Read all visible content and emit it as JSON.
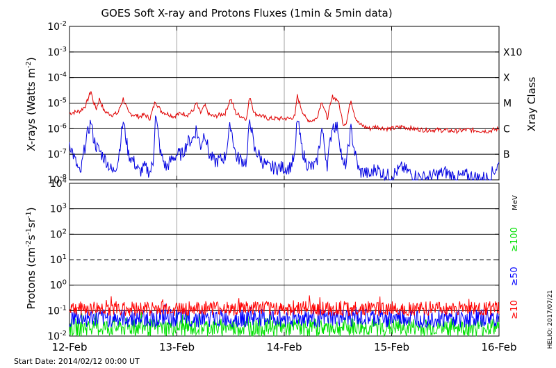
{
  "title": "GOES Soft X-ray and Protons Fluxes   (1min & 5min data)",
  "start_date": "Start Date: 2014/02/12 00:00 UT",
  "credit": "HELIO: 2017/07/21",
  "colors": {
    "xray_long": "#e00000",
    "xray_short": "#0000e0",
    "proton_10": "#ff0000",
    "proton_50": "#0000ff",
    "proton_100": "#00e000",
    "grid": "#000000",
    "day_line": "#a0a0a0"
  },
  "chart_data": [
    {
      "type": "line",
      "panel": "xray",
      "ylabel_parts": [
        "X-rays (Watts m",
        "-2",
        ")"
      ],
      "y_scale": "log",
      "ylim": [
        1e-08,
        0.01
      ],
      "yticks": [
        {
          "exp": "-2",
          "value": 0.01
        },
        {
          "exp": "-3",
          "value": 0.001
        },
        {
          "exp": "-4",
          "value": 0.0001
        },
        {
          "exp": "-5",
          "value": 1e-05
        },
        {
          "exp": "-6",
          "value": 1e-06
        },
        {
          "exp": "-7",
          "value": 1e-07
        },
        {
          "exp": "-8",
          "value": 1e-08
        }
      ],
      "xray_classes": [
        {
          "label": "X10",
          "value": 0.001
        },
        {
          "label": "X",
          "value": 0.0001
        },
        {
          "label": "M",
          "value": 1e-05
        },
        {
          "label": "C",
          "value": 1e-06
        },
        {
          "label": "B",
          "value": 1e-07
        }
      ],
      "right_label": "Xray Class",
      "series": [
        {
          "color": "#e00000",
          "x_days": [
            0.0,
            0.1,
            0.15,
            0.2,
            0.22,
            0.25,
            0.28,
            0.32,
            0.36,
            0.4,
            0.45,
            0.5,
            0.55,
            0.6,
            0.65,
            0.7,
            0.75,
            0.8,
            0.85,
            0.9,
            0.94,
            0.97,
            1.0,
            1.05,
            1.1,
            1.15,
            1.18,
            1.22,
            1.26,
            1.3,
            1.35,
            1.4,
            1.45,
            1.5,
            1.55,
            1.6,
            1.65,
            1.68,
            1.72,
            1.76,
            1.8,
            1.85,
            1.9,
            1.95,
            2.0,
            2.05,
            2.1,
            2.12,
            2.16,
            2.2,
            2.25,
            2.3,
            2.35,
            2.4,
            2.45,
            2.5,
            2.55,
            2.58,
            2.62,
            2.66,
            2.7,
            2.75,
            2.8,
            2.85,
            2.9,
            2.95,
            3.0,
            3.1,
            3.2,
            3.3,
            3.4,
            3.5,
            3.6,
            3.7,
            3.8,
            3.9,
            4.0
          ],
          "values": [
            4e-06,
            5e-06,
            8e-06,
            3e-05,
            1.2e-05,
            6e-06,
            1.5e-05,
            5e-06,
            4e-06,
            3.5e-06,
            4e-06,
            1.5e-05,
            4e-06,
            3.5e-06,
            3e-06,
            3.5e-06,
            2.5e-06,
            1.2e-05,
            5e-06,
            4e-06,
            3.5e-06,
            3e-06,
            3.5e-06,
            4e-06,
            3.5e-06,
            5e-06,
            1e-05,
            4e-06,
            8e-06,
            3.5e-06,
            3e-06,
            3.5e-06,
            4e-06,
            1.5e-05,
            4e-06,
            3e-06,
            2.5e-06,
            2e-05,
            4e-06,
            3.5e-06,
            3e-06,
            2.5e-06,
            2.5e-06,
            2.5e-06,
            2.5e-06,
            2.5e-06,
            3e-06,
            2e-05,
            6e-06,
            2.5e-06,
            2e-06,
            2.5e-06,
            1.2e-05,
            2.5e-06,
            1.8e-05,
            1.3e-05,
            1.5e-06,
            1.8e-06,
            1.4e-05,
            3e-06,
            1.5e-06,
            1.2e-06,
            1e-06,
            1.2e-06,
            1.1e-06,
            1e-06,
            1e-06,
            1.2e-06,
            1e-06,
            9e-07,
            9e-07,
            8.5e-07,
            8e-07,
            9e-07,
            8.5e-07,
            8e-07,
            1e-06
          ]
        },
        {
          "color": "#0000e0",
          "x_days": [
            0.0,
            0.05,
            0.1,
            0.15,
            0.2,
            0.22,
            0.25,
            0.3,
            0.35,
            0.4,
            0.45,
            0.5,
            0.55,
            0.6,
            0.65,
            0.7,
            0.75,
            0.78,
            0.8,
            0.85,
            0.9,
            0.95,
            1.0,
            1.05,
            1.1,
            1.15,
            1.18,
            1.22,
            1.26,
            1.3,
            1.35,
            1.4,
            1.45,
            1.5,
            1.55,
            1.6,
            1.65,
            1.68,
            1.72,
            1.76,
            1.8,
            1.85,
            1.9,
            1.95,
            2.0,
            2.05,
            2.1,
            2.12,
            2.16,
            2.2,
            2.25,
            2.3,
            2.35,
            2.4,
            2.45,
            2.5,
            2.55,
            2.58,
            2.62,
            2.66,
            2.7,
            2.75,
            2.8,
            2.85,
            2.9,
            2.95,
            3.0,
            3.1,
            3.2,
            3.3,
            3.4,
            3.5,
            3.6,
            3.7,
            3.8,
            3.9,
            4.0
          ],
          "values": [
            3e-07,
            6e-08,
            1.5e-08,
            3e-07,
            2e-06,
            5e-07,
            2e-07,
            1e-07,
            5e-08,
            2e-08,
            5e-08,
            2e-06,
            1e-07,
            5e-08,
            2e-08,
            3e-08,
            2e-08,
            5e-08,
            4e-06,
            1e-07,
            3e-08,
            6e-08,
            1e-07,
            1e-07,
            3e-07,
            4e-07,
            1e-06,
            2e-07,
            8e-07,
            1e-07,
            5e-08,
            6e-08,
            8e-08,
            1.5e-06,
            8e-08,
            6e-08,
            5e-08,
            3e-06,
            1.5e-07,
            1e-07,
            5e-08,
            3e-08,
            3e-08,
            3e-08,
            3e-08,
            3e-08,
            8e-08,
            3e-06,
            2e-07,
            5e-08,
            3e-08,
            4e-08,
            1e-06,
            4e-08,
            1.5e-06,
            1e-06,
            3e-08,
            5e-08,
            1e-06,
            1e-07,
            2e-08,
            2e-08,
            1.5e-08,
            3e-08,
            2e-08,
            1.5e-08,
            1.5e-08,
            3e-08,
            1.5e-08,
            1.2e-08,
            1.5e-08,
            2e-08,
            1.2e-08,
            1.5e-08,
            1.2e-08,
            1.2e-08,
            4e-08
          ]
        }
      ]
    },
    {
      "type": "line",
      "panel": "protons",
      "ylabel_parts": [
        "Protons (cm",
        "-2",
        "s",
        "-1",
        "sr",
        "-1",
        ")"
      ],
      "y_scale": "log",
      "ylim": [
        0.01,
        10000
      ],
      "yticks": [
        {
          "exp": "4",
          "value": 10000
        },
        {
          "exp": "3",
          "value": 1000
        },
        {
          "exp": "2",
          "value": 100
        },
        {
          "exp": "1",
          "value": 10
        },
        {
          "exp": "0",
          "value": 1
        },
        {
          "exp": "-1",
          "value": 0.1
        },
        {
          "exp": "-2",
          "value": 0.01
        }
      ],
      "dashed_level": 10,
      "right_unit": "MeV",
      "series": [
        {
          "name": "≥10",
          "color": "#ff0000",
          "level": 0.12,
          "noise": 0.12
        },
        {
          "name": "≥50",
          "color": "#0000ff",
          "level": 0.05,
          "noise": 0.15
        },
        {
          "name": "≥100",
          "color": "#00e000",
          "level": 0.022,
          "noise": 0.15
        }
      ]
    }
  ],
  "x_axis": {
    "ticks": [
      {
        "label": "12-Feb",
        "day": 0
      },
      {
        "label": "13-Feb",
        "day": 1
      },
      {
        "label": "14-Feb",
        "day": 2
      },
      {
        "label": "15-Feb",
        "day": 3
      },
      {
        "label": "16-Feb",
        "day": 4
      }
    ],
    "range_days": [
      0,
      4
    ]
  }
}
